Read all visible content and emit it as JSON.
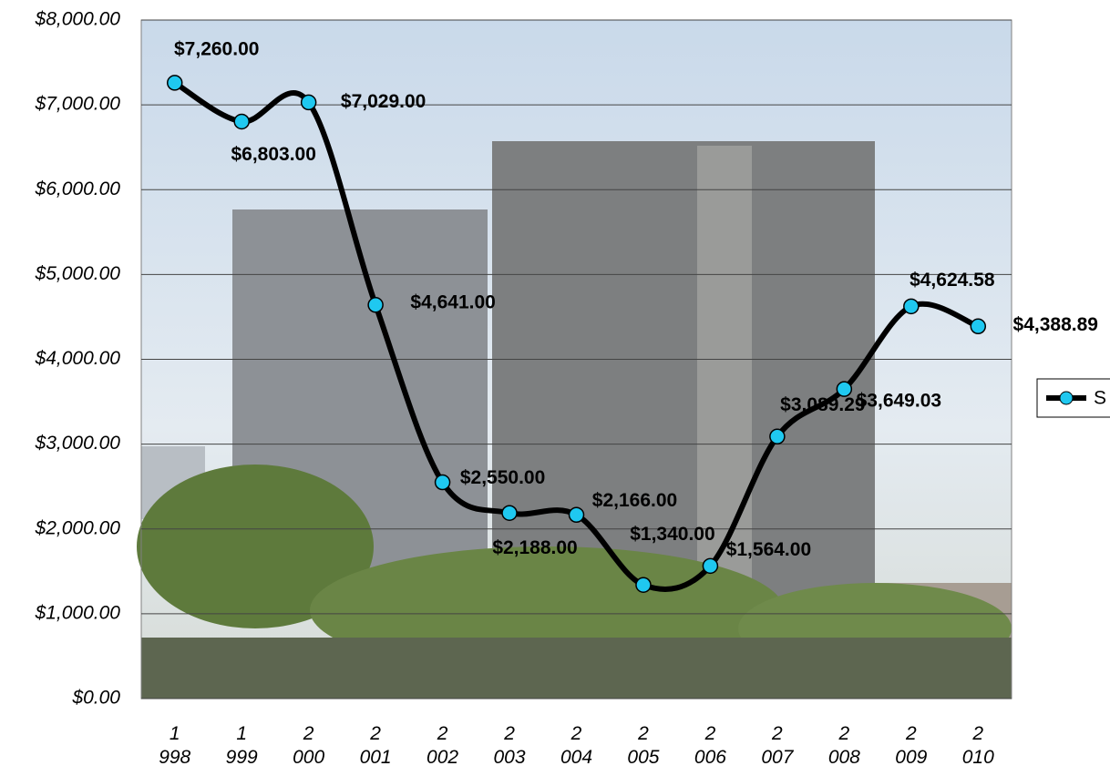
{
  "chart_data": {
    "type": "line",
    "categories": [
      "1 998",
      "1 999",
      "2 000",
      "2 001",
      "2 002",
      "2 003",
      "2 004",
      "2 005",
      "2 006",
      "2 007",
      "2 008",
      "2 009",
      "2 010"
    ],
    "series": [
      {
        "name": "S",
        "color": "#000000",
        "marker_color": "#1fc8f0",
        "values": [
          7260,
          6803,
          7029,
          4641,
          2550,
          2188,
          2166,
          1340,
          1564,
          3089.29,
          3649.03,
          4624.58,
          4388.89
        ],
        "value_labels": [
          "$7,260.00",
          "$6,803.00",
          "$7,029.00",
          "$4,641.00",
          "$2,550.00",
          "$2,188.00",
          "$2,166.00",
          "$1,340.00",
          "$1,564.00",
          "$3,089.29",
          "$3,649.03",
          "$4,624.58",
          "$4,388.89"
        ]
      }
    ],
    "ylim": [
      0,
      8000
    ],
    "yticks": [
      {
        "value": 0,
        "label": "$0.00"
      },
      {
        "value": 1000,
        "label": "$1,000.00"
      },
      {
        "value": 2000,
        "label": "$2,000.00"
      },
      {
        "value": 3000,
        "label": "$3,000.00"
      },
      {
        "value": 4000,
        "label": "$4,000.00"
      },
      {
        "value": 5000,
        "label": "$5,000.00"
      },
      {
        "value": 6000,
        "label": "$6,000.00"
      },
      {
        "value": 7000,
        "label": "$7,000.00"
      },
      {
        "value": 8000,
        "label": "$8,000.00"
      }
    ],
    "grid": true,
    "smooth": true,
    "legend": "right"
  }
}
